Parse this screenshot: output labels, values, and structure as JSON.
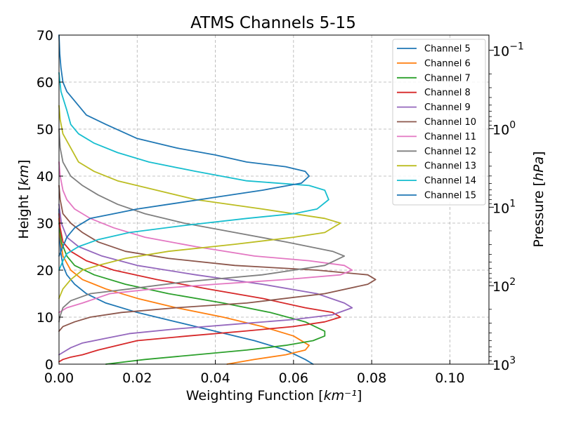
{
  "chart_data": {
    "type": "line",
    "title": "ATMS Channels 5-15",
    "xlabel": "Weighting Function [km⁻¹]",
    "ylabel": "Height [km]",
    "y2label": "Pressure [hPa]",
    "xlim": [
      0,
      0.11
    ],
    "ylim": [
      0,
      70
    ],
    "grid": true,
    "legend_position": "top-right",
    "x_ticks": [
      0.0,
      0.02,
      0.04,
      0.06,
      0.08,
      0.1
    ],
    "x_tick_labels": [
      "0.00",
      "0.02",
      "0.04",
      "0.06",
      "0.08",
      "0.10"
    ],
    "y_ticks": [
      0,
      10,
      20,
      30,
      40,
      50,
      60,
      70
    ],
    "y_tick_labels": [
      "0",
      "10",
      "20",
      "30",
      "40",
      "50",
      "60",
      "70"
    ],
    "y2_ticks": [
      {
        "pressure": 1000,
        "base": "10",
        "exp": "3"
      },
      {
        "pressure": 100,
        "base": "10",
        "exp": "2"
      },
      {
        "pressure": 10,
        "base": "10",
        "exp": "1"
      },
      {
        "pressure": 1,
        "base": "10",
        "exp": "0"
      },
      {
        "pressure": 0.1,
        "base": "10",
        "exp": "−1"
      }
    ],
    "scale_height_km": 7.25,
    "surface_pressure_hpa": 1000,
    "series": [
      {
        "name": "Channel 5",
        "color": "#1f77b4",
        "points": [
          [
            0.065,
            0
          ],
          [
            0.063,
            1
          ],
          [
            0.058,
            3
          ],
          [
            0.05,
            5
          ],
          [
            0.04,
            7
          ],
          [
            0.03,
            9
          ],
          [
            0.02,
            11
          ],
          [
            0.012,
            13
          ],
          [
            0.007,
            15
          ],
          [
            0.004,
            17
          ],
          [
            0.002,
            19
          ],
          [
            0.001,
            21
          ],
          [
            0.0004,
            24
          ],
          [
            0.0001,
            28
          ],
          [
            0,
            33
          ]
        ]
      },
      {
        "name": "Channel 6",
        "color": "#ff7f0e",
        "points": [
          [
            0.043,
            0
          ],
          [
            0.05,
            1
          ],
          [
            0.058,
            2
          ],
          [
            0.063,
            3
          ],
          [
            0.064,
            4
          ],
          [
            0.06,
            6
          ],
          [
            0.052,
            8
          ],
          [
            0.042,
            10
          ],
          [
            0.03,
            12
          ],
          [
            0.02,
            14
          ],
          [
            0.012,
            16
          ],
          [
            0.006,
            18
          ],
          [
            0.003,
            20
          ],
          [
            0.001,
            23
          ],
          [
            0.0003,
            27
          ],
          [
            0,
            31
          ]
        ]
      },
      {
        "name": "Channel 7",
        "color": "#2ca02c",
        "points": [
          [
            0.012,
            0
          ],
          [
            0.022,
            1
          ],
          [
            0.035,
            2
          ],
          [
            0.048,
            3
          ],
          [
            0.058,
            4
          ],
          [
            0.065,
            5
          ],
          [
            0.068,
            6
          ],
          [
            0.068,
            7
          ],
          [
            0.063,
            9
          ],
          [
            0.054,
            11
          ],
          [
            0.042,
            13
          ],
          [
            0.028,
            15
          ],
          [
            0.017,
            17
          ],
          [
            0.009,
            19
          ],
          [
            0.004,
            21
          ],
          [
            0.002,
            23
          ],
          [
            0.0006,
            26
          ],
          [
            0,
            30
          ]
        ]
      },
      {
        "name": "Channel 8",
        "color": "#d62728",
        "points": [
          [
            0,
            0.5
          ],
          [
            0.001,
            1
          ],
          [
            0.003,
            1.5
          ],
          [
            0.006,
            2
          ],
          [
            0.01,
            3
          ],
          [
            0.02,
            5
          ],
          [
            0.033,
            6
          ],
          [
            0.047,
            7
          ],
          [
            0.06,
            8
          ],
          [
            0.068,
            9
          ],
          [
            0.072,
            10
          ],
          [
            0.07,
            11
          ],
          [
            0.063,
            12
          ],
          [
            0.052,
            14
          ],
          [
            0.038,
            16
          ],
          [
            0.025,
            18
          ],
          [
            0.014,
            20
          ],
          [
            0.007,
            22
          ],
          [
            0.003,
            24
          ],
          [
            0.001,
            26
          ],
          [
            0.0003,
            29
          ],
          [
            0,
            32
          ]
        ]
      },
      {
        "name": "Channel 9",
        "color": "#9467bd",
        "points": [
          [
            0,
            2
          ],
          [
            0.001,
            2.5
          ],
          [
            0.003,
            3.5
          ],
          [
            0.006,
            4.5
          ],
          [
            0.012,
            5.5
          ],
          [
            0.018,
            6.5
          ],
          [
            0.03,
            7.5
          ],
          [
            0.045,
            8.5
          ],
          [
            0.06,
            9.5
          ],
          [
            0.07,
            10.5
          ],
          [
            0.075,
            12
          ],
          [
            0.073,
            13
          ],
          [
            0.066,
            15
          ],
          [
            0.052,
            17
          ],
          [
            0.035,
            19
          ],
          [
            0.02,
            21
          ],
          [
            0.011,
            23
          ],
          [
            0.005,
            25
          ],
          [
            0.002,
            27
          ],
          [
            0.0006,
            30
          ],
          [
            0,
            34
          ]
        ]
      },
      {
        "name": "Channel 10",
        "color": "#8c564b",
        "points": [
          [
            0,
            7
          ],
          [
            0.001,
            8
          ],
          [
            0.004,
            9
          ],
          [
            0.008,
            10
          ],
          [
            0.016,
            11
          ],
          [
            0.03,
            12
          ],
          [
            0.048,
            13
          ],
          [
            0.068,
            15
          ],
          [
            0.079,
            17
          ],
          [
            0.081,
            18
          ],
          [
            0.079,
            19
          ],
          [
            0.066,
            20
          ],
          [
            0.045,
            21
          ],
          [
            0.028,
            22.5
          ],
          [
            0.017,
            24
          ],
          [
            0.01,
            26
          ],
          [
            0.006,
            28
          ],
          [
            0.003,
            30
          ],
          [
            0.001,
            32
          ],
          [
            0.0003,
            35
          ],
          [
            0,
            38
          ]
        ]
      },
      {
        "name": "Channel 11",
        "color": "#e377c2",
        "points": [
          [
            0,
            11
          ],
          [
            0.002,
            12
          ],
          [
            0.006,
            13
          ],
          [
            0.013,
            15
          ],
          [
            0.024,
            16
          ],
          [
            0.04,
            17
          ],
          [
            0.058,
            18
          ],
          [
            0.072,
            19
          ],
          [
            0.075,
            20
          ],
          [
            0.073,
            21
          ],
          [
            0.064,
            22
          ],
          [
            0.05,
            23
          ],
          [
            0.035,
            25
          ],
          [
            0.022,
            27
          ],
          [
            0.014,
            29
          ],
          [
            0.008,
            31
          ],
          [
            0.004,
            33
          ],
          [
            0.002,
            35
          ],
          [
            0.001,
            37
          ],
          [
            0.0003,
            40
          ],
          [
            0,
            43
          ]
        ]
      },
      {
        "name": "Channel 12",
        "color": "#7f7f7f",
        "points": [
          [
            0,
            9
          ],
          [
            0.0002,
            10
          ],
          [
            0.001,
            12
          ],
          [
            0.003,
            13.5
          ],
          [
            0.008,
            15
          ],
          [
            0.018,
            16
          ],
          [
            0.032,
            17.5
          ],
          [
            0.052,
            19
          ],
          [
            0.068,
            21
          ],
          [
            0.073,
            23
          ],
          [
            0.07,
            24
          ],
          [
            0.058,
            26
          ],
          [
            0.045,
            28
          ],
          [
            0.032,
            30
          ],
          [
            0.022,
            32
          ],
          [
            0.015,
            34
          ],
          [
            0.01,
            36
          ],
          [
            0.006,
            38
          ],
          [
            0.003,
            40
          ],
          [
            0.001,
            43
          ],
          [
            0.0003,
            46
          ],
          [
            0,
            50
          ]
        ]
      },
      {
        "name": "Channel 13",
        "color": "#bcbd22",
        "points": [
          [
            0,
            14
          ],
          [
            0.001,
            16
          ],
          [
            0.003,
            18
          ],
          [
            0.006,
            20
          ],
          [
            0.01,
            21
          ],
          [
            0.017,
            22.5
          ],
          [
            0.028,
            24
          ],
          [
            0.045,
            25.5
          ],
          [
            0.06,
            27
          ],
          [
            0.068,
            28
          ],
          [
            0.072,
            30
          ],
          [
            0.068,
            31
          ],
          [
            0.052,
            33
          ],
          [
            0.035,
            35
          ],
          [
            0.025,
            37
          ],
          [
            0.015,
            39
          ],
          [
            0.009,
            41
          ],
          [
            0.005,
            43
          ],
          [
            0.003,
            46
          ],
          [
            0.001,
            49
          ],
          [
            0.0003,
            52
          ],
          [
            0,
            55
          ]
        ]
      },
      {
        "name": "Channel 14",
        "color": "#17becf",
        "points": [
          [
            0,
            20
          ],
          [
            0.001,
            22
          ],
          [
            0.002,
            23.5
          ],
          [
            0.005,
            25
          ],
          [
            0.01,
            26.5
          ],
          [
            0.018,
            28
          ],
          [
            0.032,
            29.5
          ],
          [
            0.048,
            31
          ],
          [
            0.06,
            32
          ],
          [
            0.066,
            33
          ],
          [
            0.069,
            35
          ],
          [
            0.068,
            37
          ],
          [
            0.064,
            38
          ],
          [
            0.048,
            39
          ],
          [
            0.035,
            41
          ],
          [
            0.023,
            43
          ],
          [
            0.015,
            45
          ],
          [
            0.009,
            47
          ],
          [
            0.005,
            49
          ],
          [
            0.003,
            51
          ],
          [
            0.002,
            54
          ],
          [
            0.0005,
            58
          ],
          [
            0,
            62
          ]
        ]
      },
      {
        "name": "Channel 15",
        "color": "#1f77b4",
        "points": [
          [
            0,
            23
          ],
          [
            0.001,
            25
          ],
          [
            0.002,
            27
          ],
          [
            0.004,
            29
          ],
          [
            0.008,
            31
          ],
          [
            0.014,
            32
          ],
          [
            0.02,
            33
          ],
          [
            0.028,
            34
          ],
          [
            0.04,
            35.5
          ],
          [
            0.052,
            37
          ],
          [
            0.062,
            38.5
          ],
          [
            0.064,
            40
          ],
          [
            0.063,
            41
          ],
          [
            0.058,
            42
          ],
          [
            0.048,
            43
          ],
          [
            0.04,
            44.5
          ],
          [
            0.03,
            46
          ],
          [
            0.02,
            48
          ],
          [
            0.012,
            51
          ],
          [
            0.007,
            53
          ],
          [
            0.004,
            56
          ],
          [
            0.002,
            58
          ],
          [
            0.001,
            60
          ],
          [
            0.0005,
            63
          ],
          [
            0.0002,
            66
          ],
          [
            0,
            70
          ]
        ]
      }
    ]
  }
}
